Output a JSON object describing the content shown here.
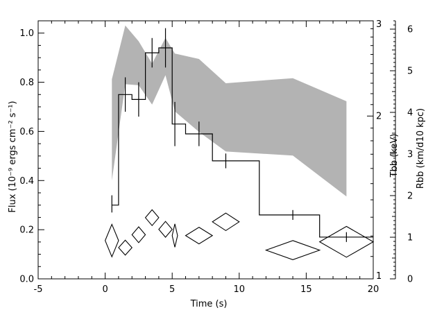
{
  "chart_data": {
    "type": "line",
    "title": "",
    "xlabel": "Time (s)",
    "ylabel": "Flux (10⁻⁹ ergs cm⁻² s⁻¹)",
    "y2label": "Tbb (keV)",
    "y3label": "Rbb (km/d10 kpc)",
    "xlim": [
      -5,
      20
    ],
    "ylim": [
      0,
      1.05
    ],
    "y2lim": [
      1,
      3
    ],
    "y3lim": [
      0,
      6.2
    ],
    "y2_scale": "log",
    "grid": false,
    "x_ticks": [
      -5,
      0,
      5,
      10,
      15,
      20
    ],
    "y_ticks": [
      0.0,
      0.2,
      0.4,
      0.6,
      0.8,
      1.0
    ],
    "y2_ticks": [
      1,
      2,
      3
    ],
    "y3_ticks": [
      0,
      1,
      2,
      3,
      4,
      5,
      6
    ],
    "flux_step": {
      "name": "Flux",
      "edges": [
        0.5,
        1.0,
        2.0,
        3.0,
        4.0,
        5.0,
        6.0,
        8.0,
        11.5,
        16.0,
        20.0
      ],
      "values": [
        0.3,
        0.75,
        0.73,
        0.92,
        0.94,
        0.63,
        0.59,
        0.48,
        0.26,
        0.17
      ]
    },
    "flux_errorbars": [
      {
        "x": 0.5,
        "low": 0.27,
        "high": 0.34
      },
      {
        "x": 1.5,
        "low": 0.68,
        "high": 0.82
      },
      {
        "x": 2.5,
        "low": 0.66,
        "high": 0.8
      },
      {
        "x": 3.5,
        "low": 0.86,
        "high": 0.98
      },
      {
        "x": 4.5,
        "low": 0.86,
        "high": 1.02
      },
      {
        "x": 5.2,
        "low": 0.54,
        "high": 0.72
      },
      {
        "x": 7.0,
        "low": 0.54,
        "high": 0.64
      },
      {
        "x": 9.0,
        "low": 0.45,
        "high": 0.51
      },
      {
        "x": 14.0,
        "low": 0.24,
        "high": 0.28
      },
      {
        "x": 18.0,
        "low": 0.15,
        "high": 0.19
      }
    ],
    "temperature_band": {
      "name": "Tbb",
      "x": [
        0.5,
        1.5,
        2.5,
        3.5,
        4.5,
        5.2,
        7.0,
        9.0,
        14.0,
        18.0
      ],
      "low": [
        1.52,
        2.29,
        2.28,
        2.1,
        2.38,
        2.04,
        1.87,
        1.72,
        1.69,
        1.42
      ],
      "high": [
        2.34,
        2.94,
        2.75,
        2.5,
        2.79,
        2.61,
        2.55,
        2.3,
        2.35,
        2.13
      ]
    },
    "radius_diamonds": {
      "name": "Rbb",
      "points": [
        {
          "x": 0.5,
          "y": 0.92,
          "dx": 0.5,
          "dy": 0.39
        },
        {
          "x": 1.5,
          "y": 0.75,
          "dx": 0.5,
          "dy": 0.18
        },
        {
          "x": 2.5,
          "y": 1.06,
          "dx": 0.5,
          "dy": 0.19
        },
        {
          "x": 3.5,
          "y": 1.47,
          "dx": 0.5,
          "dy": 0.19
        },
        {
          "x": 4.5,
          "y": 1.19,
          "dx": 0.5,
          "dy": 0.19
        },
        {
          "x": 5.2,
          "y": 1.04,
          "dx": 0.2,
          "dy": 0.28
        },
        {
          "x": 7.0,
          "y": 1.04,
          "dx": 1.0,
          "dy": 0.2
        },
        {
          "x": 9.0,
          "y": 1.37,
          "dx": 1.0,
          "dy": 0.21
        },
        {
          "x": 14.0,
          "y": 0.69,
          "dx": 2.0,
          "dy": 0.23
        },
        {
          "x": 18.0,
          "y": 0.89,
          "dx": 2.0,
          "dy": 0.37
        }
      ]
    },
    "colors": {
      "band": "#b3b3b3",
      "line": "#000000",
      "background": "#ffffff"
    }
  }
}
